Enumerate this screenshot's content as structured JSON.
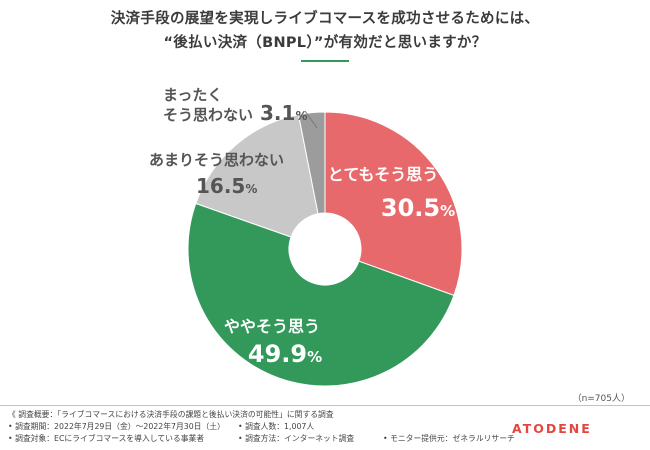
{
  "chart_data": {
    "type": "pie",
    "donut": true,
    "title_lines": [
      "決済手段の展望を実現しライブコマースを成功させるためには、",
      "“後払い決済（BNPL）”が有効だと思いますか？"
    ],
    "unit": "%",
    "slices": [
      {
        "label_lines": [
          "とてもそう思う"
        ],
        "value": 30.5,
        "color": "#e8696b"
      },
      {
        "label_lines": [
          "ややそう思う"
        ],
        "value": 49.9,
        "color": "#32995b"
      },
      {
        "label_lines": [
          "あまりそう思わない"
        ],
        "value": 16.5,
        "color": "#c8c8c8"
      },
      {
        "label_lines": [
          "まったく",
          "そう思わない"
        ],
        "value": 3.1,
        "color": "#9c9c9c"
      }
    ],
    "sample_note": "（n=705人）"
  },
  "footer": {
    "overview": "《 調査概要：「ライブコマースにおける決済手段の課題と後払い決済の可能性」に関する調査",
    "period": "• 調査期間：2022年7月29日（金）〜2022年7月30日（土）",
    "respondents": "• 調査人数：1,007人",
    "target": "• 調査対象：ECにライブコマースを導入している事業者",
    "method": "• 調査方法：インターネット調査",
    "provider": "• モニター提供元：ゼネラルリサーチ"
  },
  "logo": {
    "text": "ATODENE",
    "color": "#e4463f"
  },
  "colors": {
    "title_accent": "#32995b",
    "inner_label": "#ffffff",
    "outer_label": "#555555",
    "leader_line": "#777777"
  }
}
